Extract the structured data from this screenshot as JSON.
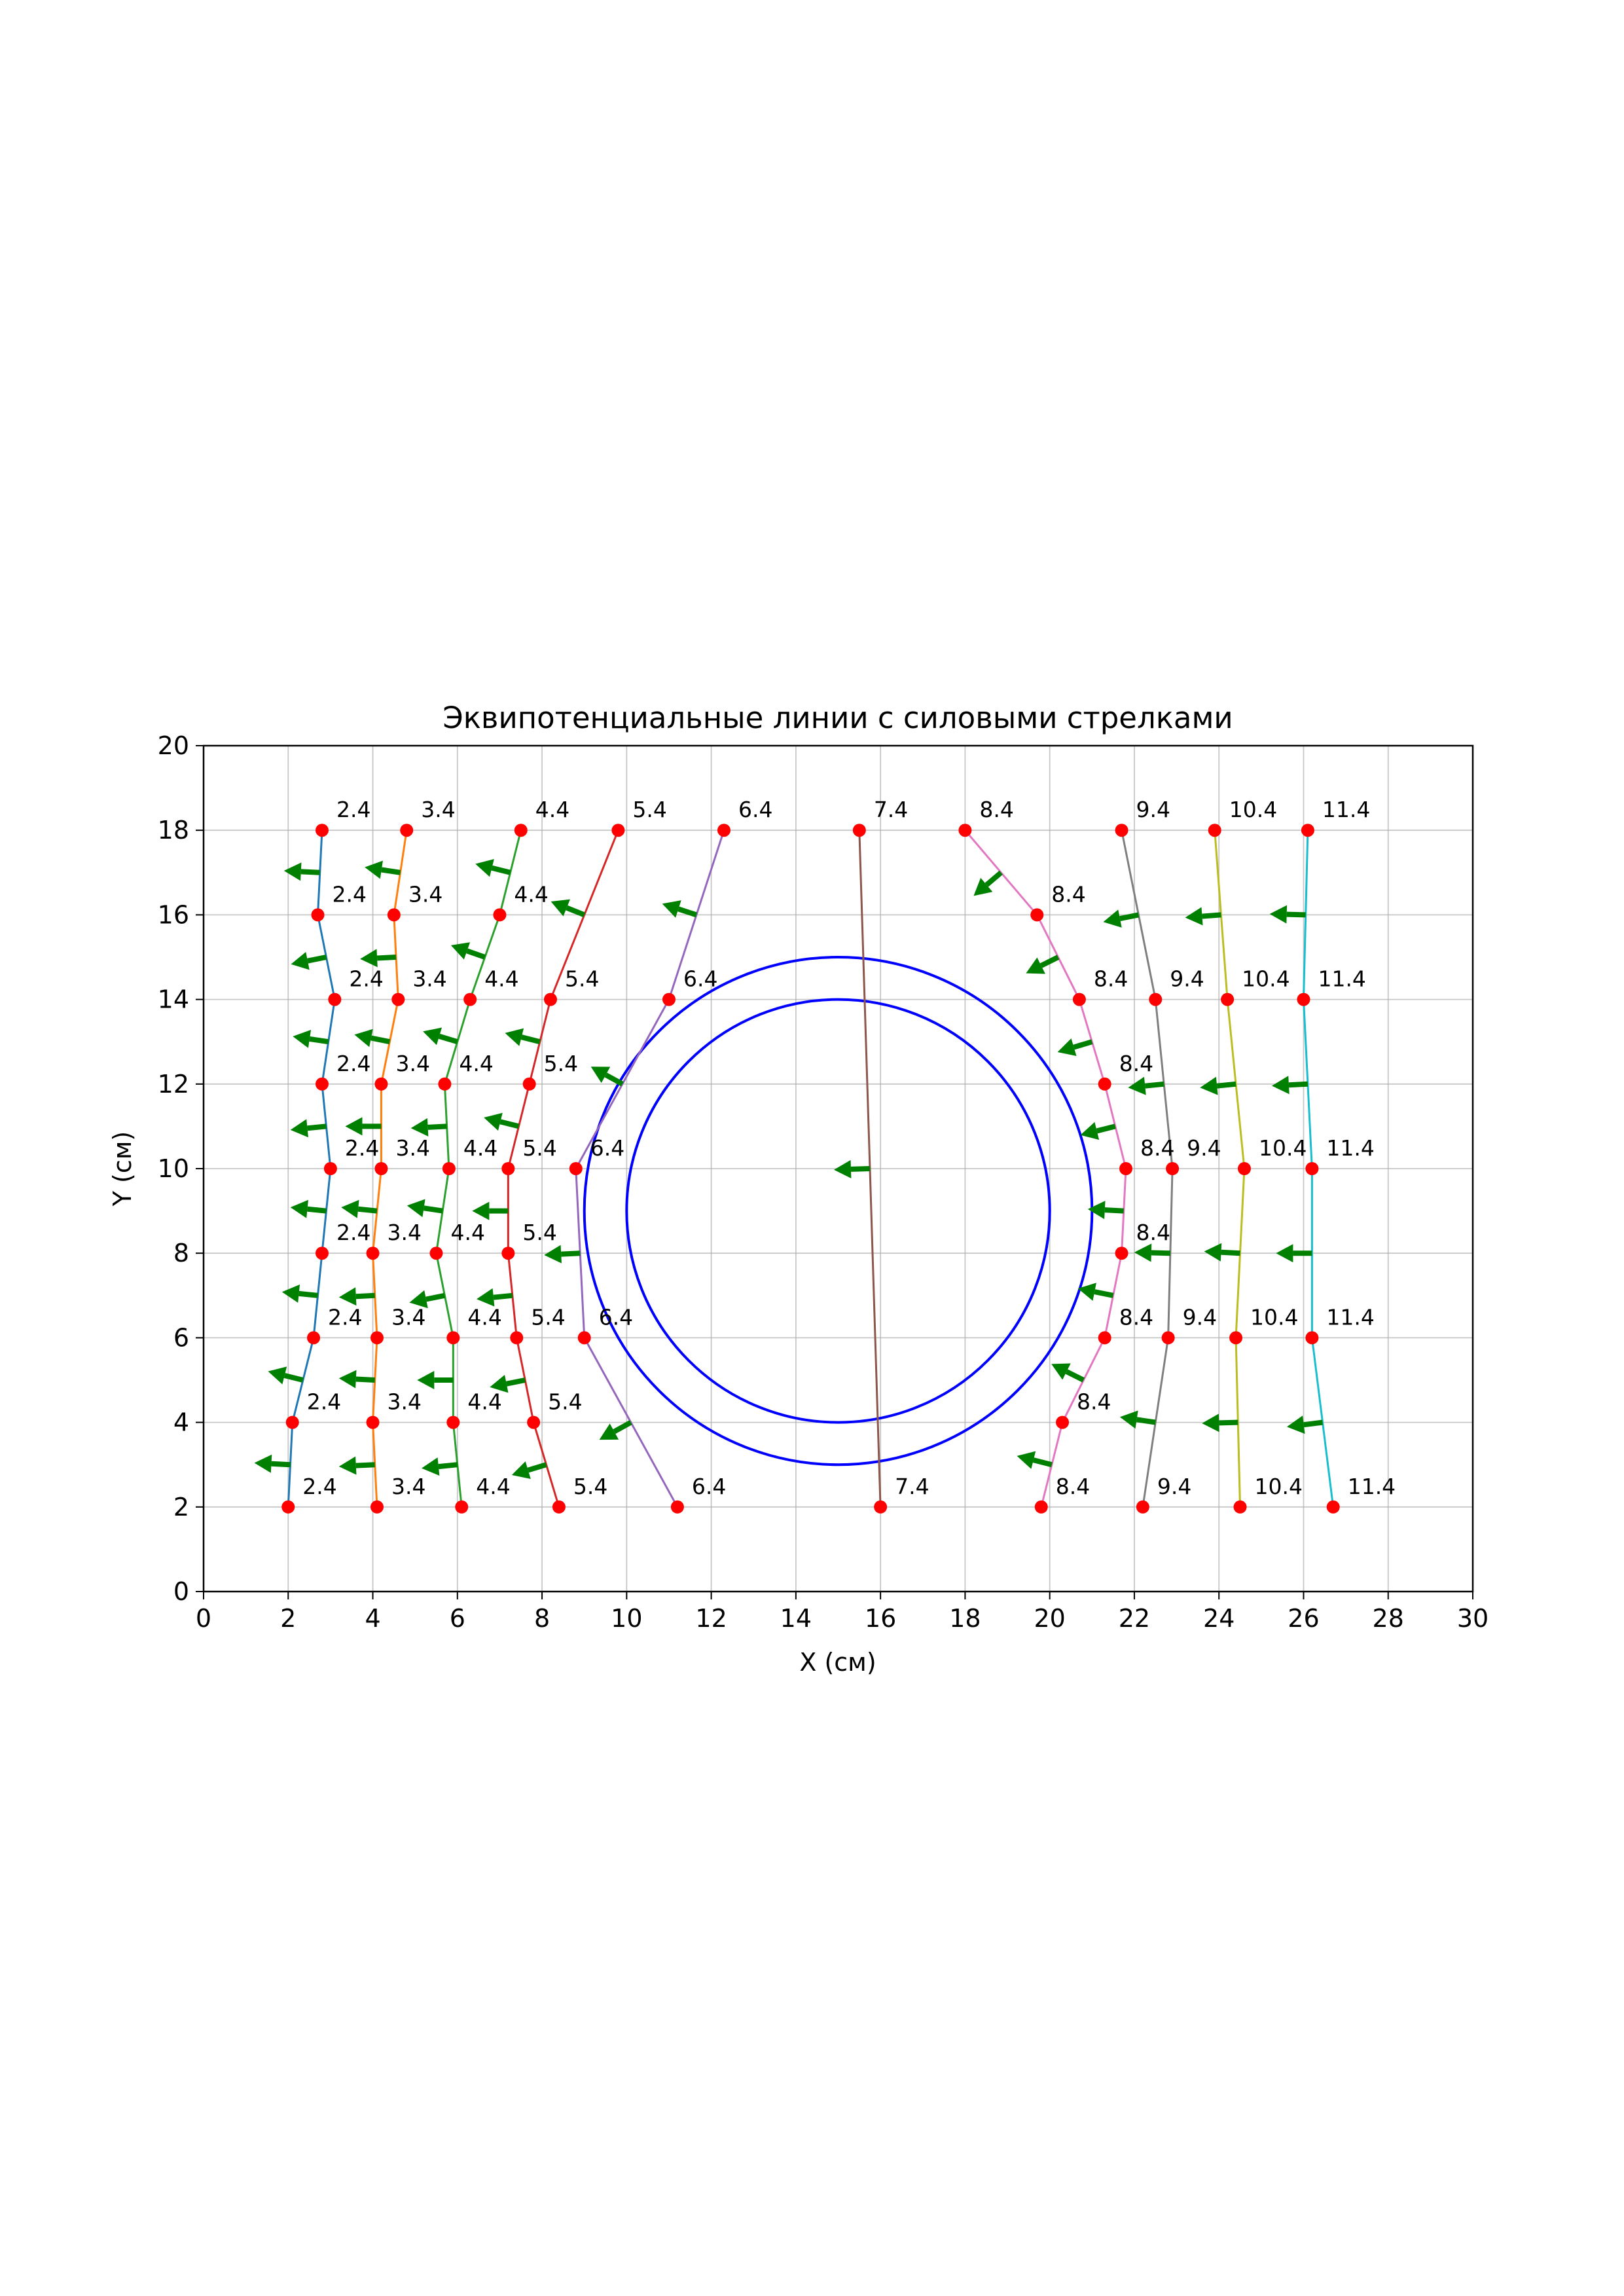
{
  "chart_data": {
    "type": "line",
    "title": "Эквипотенциальные линии с силовыми стрелками",
    "xlabel": "X (см)",
    "ylabel": "Y (см)",
    "xlim": [
      0,
      30
    ],
    "ylim": [
      0,
      20
    ],
    "xticks": [
      0,
      2,
      4,
      6,
      8,
      10,
      12,
      14,
      16,
      18,
      20,
      22,
      24,
      26,
      28,
      30
    ],
    "yticks": [
      0,
      2,
      4,
      6,
      8,
      10,
      12,
      14,
      16,
      18,
      20
    ],
    "grid": true,
    "point_color": "#ff0000",
    "arrow_color": "#008000",
    "series": [
      {
        "label": "2.4",
        "color": "#1f77b4",
        "points": [
          [
            2.8,
            18
          ],
          [
            2.7,
            16
          ],
          [
            3.1,
            14
          ],
          [
            2.8,
            12
          ],
          [
            3.0,
            10
          ],
          [
            2.8,
            8
          ],
          [
            2.6,
            6
          ],
          [
            2.1,
            4
          ],
          [
            2.0,
            2
          ]
        ]
      },
      {
        "label": "3.4",
        "color": "#ff7f0e",
        "points": [
          [
            4.8,
            18
          ],
          [
            4.5,
            16
          ],
          [
            4.6,
            14
          ],
          [
            4.2,
            12
          ],
          [
            4.2,
            10
          ],
          [
            4.0,
            8
          ],
          [
            4.1,
            6
          ],
          [
            4.0,
            4
          ],
          [
            4.1,
            2
          ]
        ]
      },
      {
        "label": "4.4",
        "color": "#2ca02c",
        "points": [
          [
            7.5,
            18
          ],
          [
            7.0,
            16
          ],
          [
            6.3,
            14
          ],
          [
            5.7,
            12
          ],
          [
            5.8,
            10
          ],
          [
            5.5,
            8
          ],
          [
            5.9,
            6
          ],
          [
            5.9,
            4
          ],
          [
            6.1,
            2
          ]
        ]
      },
      {
        "label": "5.4",
        "color": "#d62728",
        "points": [
          [
            9.8,
            18
          ],
          [
            8.2,
            14
          ],
          [
            7.7,
            12
          ],
          [
            7.2,
            10
          ],
          [
            7.2,
            8
          ],
          [
            7.4,
            6
          ],
          [
            7.8,
            4
          ],
          [
            8.4,
            2
          ]
        ]
      },
      {
        "label": "6.4",
        "color": "#9467bd",
        "points": [
          [
            12.3,
            18
          ],
          [
            11.0,
            14
          ],
          [
            8.8,
            10
          ],
          [
            9.0,
            6
          ],
          [
            11.2,
            2
          ]
        ]
      },
      {
        "label": "7.4",
        "color": "#8c564b",
        "points": [
          [
            15.5,
            18
          ],
          [
            16.0,
            2
          ]
        ]
      },
      {
        "label": "8.4",
        "color": "#e377c2",
        "points": [
          [
            18.0,
            18
          ],
          [
            19.7,
            16
          ],
          [
            20.7,
            14
          ],
          [
            21.3,
            12
          ],
          [
            21.8,
            10
          ],
          [
            21.7,
            8
          ],
          [
            21.3,
            6
          ],
          [
            20.3,
            4
          ],
          [
            19.8,
            2
          ]
        ]
      },
      {
        "label": "9.4",
        "color": "#7f7f7f",
        "points": [
          [
            21.7,
            18
          ],
          [
            22.5,
            14
          ],
          [
            22.9,
            10
          ],
          [
            22.8,
            6
          ],
          [
            22.2,
            2
          ]
        ]
      },
      {
        "label": "10.4",
        "color": "#bcbd22",
        "points": [
          [
            23.9,
            18
          ],
          [
            24.2,
            14
          ],
          [
            24.6,
            10
          ],
          [
            24.4,
            6
          ],
          [
            24.5,
            2
          ]
        ]
      },
      {
        "label": "11.4",
        "color": "#17becf",
        "points": [
          [
            26.1,
            18
          ],
          [
            26.0,
            14
          ],
          [
            26.2,
            10
          ],
          [
            26.2,
            6
          ],
          [
            26.7,
            2
          ]
        ]
      }
    ],
    "circles": [
      {
        "center": [
          15,
          9
        ],
        "radius": 5,
        "color": "#0000ff"
      },
      {
        "center": [
          15,
          9
        ],
        "radius": 6,
        "color": "#0000ff"
      }
    ]
  }
}
